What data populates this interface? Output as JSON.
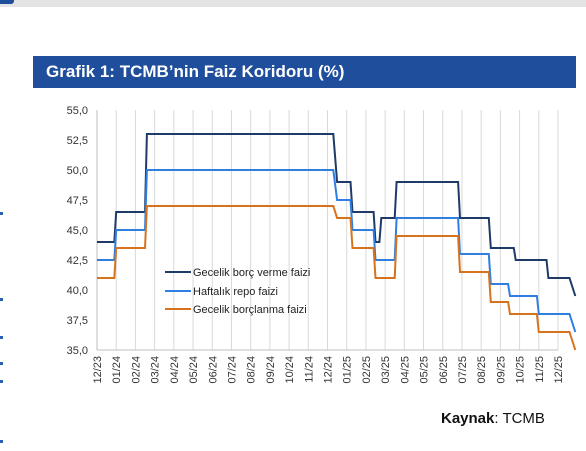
{
  "header": {
    "title": "Grafik 1: TCMB’nin Faiz Koridoru (%)"
  },
  "source": {
    "label": "Kaynak",
    "value": ": TCMB"
  },
  "colors": {
    "title_bg": "#1f4e9c",
    "overnight_lending": "#1f3a68",
    "repo": "#2f7fe0",
    "overnight_borrowing": "#d7731d",
    "grid": "#d9d9d9"
  },
  "chart_data": {
    "type": "line",
    "title": "Grafik 1: TCMB’nin Faiz Koridoru (%)",
    "xlabel": "",
    "ylabel": "",
    "ylim": [
      35.0,
      55.0
    ],
    "yticks": [
      "55,0",
      "52,5",
      "50,0",
      "47,5",
      "45,0",
      "42,5",
      "40,0",
      "37,5",
      "35,0"
    ],
    "xticks": [
      "12/23",
      "01/24",
      "02/24",
      "03/24",
      "04/24",
      "05/24",
      "06/24",
      "07/24",
      "08/24",
      "09/24",
      "10/24",
      "11/24",
      "12/24",
      "01/25",
      "02/25",
      "03/25",
      "04/25",
      "05/25",
      "06/25",
      "07/25",
      "08/25",
      "09/25",
      "10/25",
      "11/25",
      "12/25"
    ],
    "grid": "vertical",
    "legend_position": "center-left",
    "series": [
      {
        "name": "Gecelik borç verme faizi",
        "color": "#1f3a68",
        "points": [
          [
            0,
            44
          ],
          [
            0.9,
            44
          ],
          [
            1,
            46.5
          ],
          [
            2.5,
            46.5
          ],
          [
            2.6,
            53
          ],
          [
            12.3,
            53
          ],
          [
            12.5,
            49
          ],
          [
            13.2,
            49
          ],
          [
            13.3,
            46.5
          ],
          [
            14.4,
            46.5
          ],
          [
            14.5,
            44
          ],
          [
            14.7,
            44
          ],
          [
            14.8,
            46
          ],
          [
            15.5,
            46
          ],
          [
            15.6,
            49
          ],
          [
            18.8,
            49
          ],
          [
            18.9,
            46
          ],
          [
            20.4,
            46
          ],
          [
            20.5,
            43.5
          ],
          [
            21.7,
            43.5
          ],
          [
            21.8,
            42.5
          ],
          [
            23.4,
            42.5
          ],
          [
            23.5,
            41
          ],
          [
            24.6,
            41
          ],
          [
            24.9,
            39.5
          ]
        ]
      },
      {
        "name": "Haftalık repo faizi",
        "color": "#2f7fe0",
        "points": [
          [
            0,
            42.5
          ],
          [
            0.9,
            42.5
          ],
          [
            1,
            45
          ],
          [
            2.5,
            45
          ],
          [
            2.6,
            50
          ],
          [
            12.3,
            50
          ],
          [
            12.5,
            47.5
          ],
          [
            13.2,
            47.5
          ],
          [
            13.3,
            45
          ],
          [
            14.4,
            45
          ],
          [
            14.5,
            42.5
          ],
          [
            15.5,
            42.5
          ],
          [
            15.6,
            46
          ],
          [
            18.8,
            46
          ],
          [
            18.9,
            43
          ],
          [
            20.4,
            43
          ],
          [
            20.5,
            40.5
          ],
          [
            21.4,
            40.5
          ],
          [
            21.5,
            39.5
          ],
          [
            22.9,
            39.5
          ],
          [
            23.0,
            38
          ],
          [
            24.6,
            38
          ],
          [
            24.9,
            36.5
          ]
        ]
      },
      {
        "name": "Gecelik borçlanma faizi",
        "color": "#d7731d",
        "points": [
          [
            0,
            41
          ],
          [
            0.9,
            41
          ],
          [
            1,
            43.5
          ],
          [
            2.5,
            43.5
          ],
          [
            2.6,
            47
          ],
          [
            12.3,
            47
          ],
          [
            12.5,
            46
          ],
          [
            13.2,
            46
          ],
          [
            13.3,
            43.5
          ],
          [
            14.4,
            43.5
          ],
          [
            14.5,
            41
          ],
          [
            15.5,
            41
          ],
          [
            15.6,
            44.5
          ],
          [
            18.8,
            44.5
          ],
          [
            18.9,
            41.5
          ],
          [
            20.4,
            41.5
          ],
          [
            20.5,
            39
          ],
          [
            21.4,
            39
          ],
          [
            21.5,
            38
          ],
          [
            22.9,
            38
          ],
          [
            23.0,
            36.5
          ],
          [
            24.0,
            36.5
          ],
          [
            24.1,
            36.5
          ],
          [
            24.6,
            36.5
          ],
          [
            24.9,
            35
          ]
        ]
      }
    ]
  }
}
